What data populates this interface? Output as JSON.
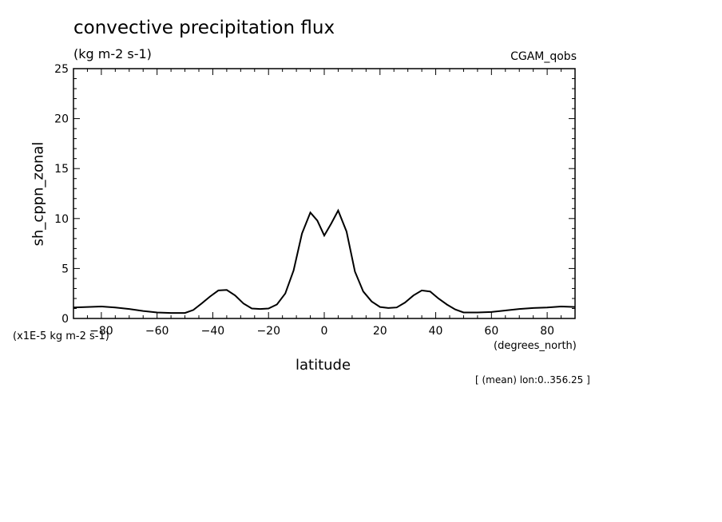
{
  "chart_data": {
    "type": "line",
    "title": "convective precipitation flux",
    "subtitle": "(kg m-2 s-1)",
    "dataset_label": "CGAM_qobs",
    "ylabel": "sh_cppn_zonal",
    "xlabel": "latitude",
    "x_unit": "(degrees_north)",
    "y_scale_note": "(x1E-5 kg m-2 s-1)",
    "footnote": "[ (mean) lon:0..356.25 ]",
    "xlim": [
      -90,
      90
    ],
    "ylim": [
      0,
      25
    ],
    "x_ticks": [
      -80,
      -60,
      -40,
      -20,
      0,
      20,
      40,
      60,
      80
    ],
    "y_ticks": [
      0,
      5,
      10,
      15,
      20,
      25
    ],
    "grid": false,
    "series": [
      {
        "x": [
          -90,
          -85,
          -80,
          -75,
          -70,
          -65,
          -60,
          -55,
          -50,
          -47,
          -44,
          -41,
          -38,
          -35,
          -32,
          -29,
          -26,
          -23,
          -20,
          -17,
          -14,
          -11,
          -8,
          -5,
          -2.5,
          0,
          2.5,
          5,
          8,
          11,
          14,
          17,
          20,
          23,
          26,
          29,
          32,
          35,
          38,
          41,
          44,
          47,
          50,
          55,
          60,
          65,
          70,
          75,
          80,
          85,
          90
        ],
        "y": [
          1.1,
          1.15,
          1.2,
          1.1,
          0.95,
          0.75,
          0.6,
          0.55,
          0.55,
          0.85,
          1.5,
          2.2,
          2.8,
          2.85,
          2.3,
          1.5,
          1.0,
          0.95,
          1.0,
          1.4,
          2.5,
          4.8,
          8.5,
          10.6,
          9.8,
          8.3,
          9.5,
          10.8,
          8.7,
          4.7,
          2.7,
          1.7,
          1.15,
          1.05,
          1.1,
          1.6,
          2.3,
          2.8,
          2.7,
          2.0,
          1.4,
          0.9,
          0.6,
          0.6,
          0.65,
          0.8,
          0.95,
          1.05,
          1.1,
          1.2,
          1.15
        ]
      }
    ]
  }
}
